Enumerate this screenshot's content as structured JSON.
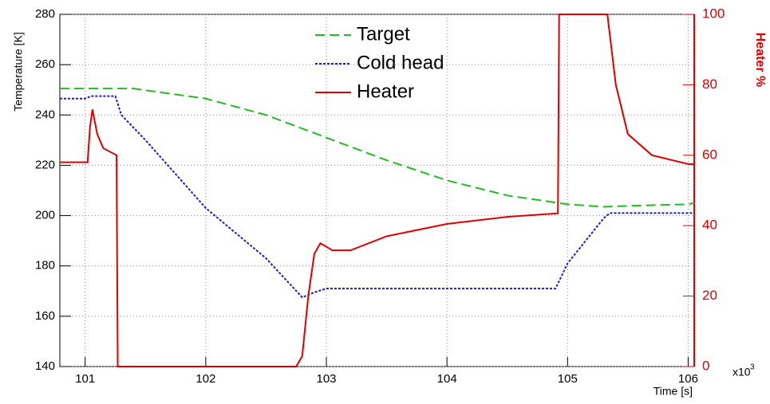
{
  "chart_data": {
    "type": "line",
    "y_label": "Temperature [K]",
    "y2_label": "Heater %",
    "x_label": "Time [s]",
    "x_multiplier": "x10",
    "x_multiplier_exp": "3",
    "xlim": [
      100.79,
      106.05
    ],
    "xticks": [
      101,
      102,
      103,
      104,
      105,
      106
    ],
    "ylim": [
      140,
      280
    ],
    "yticks": [
      140,
      160,
      180,
      200,
      220,
      240,
      260,
      280
    ],
    "y2lim": [
      0,
      100
    ],
    "y2ticks": [
      0,
      20,
      40,
      60,
      80,
      100
    ],
    "y2_color": "#e00000",
    "grid": true,
    "legend": "top",
    "series": [
      {
        "name": "Target",
        "color": "#22bb22",
        "dash": "dashed",
        "x": [
          100.79,
          101.4,
          102,
          102.5,
          103,
          103.5,
          104,
          104.5,
          105,
          105.3,
          105.6,
          106,
          106.05
        ],
        "values": [
          250.5,
          250.5,
          246.5,
          240,
          231,
          222,
          214,
          208,
          204.5,
          203.5,
          204,
          204.5,
          205
        ]
      },
      {
        "name": "Cold head",
        "color": "#1a1acc",
        "dash": "dotted",
        "x": [
          100.79,
          101.0,
          101.05,
          101.25,
          101.3,
          101.5,
          102,
          102.5,
          102.8,
          102.9,
          103,
          104.9,
          105,
          105.3,
          105.35,
          106.05
        ],
        "values": [
          246.5,
          246.5,
          247.5,
          247.5,
          240,
          230,
          203,
          183,
          167.5,
          169.5,
          171,
          171,
          181,
          199,
          201,
          201
        ]
      },
      {
        "name": "Heater",
        "color": "#e00000",
        "dash": "solid",
        "axis": "y2",
        "x": [
          100.79,
          101.02,
          101.04,
          101.06,
          101.1,
          101.15,
          101.26,
          101.27,
          102.75,
          102.8,
          102.85,
          102.9,
          102.95,
          103.05,
          103.2,
          103.5,
          104,
          104.5,
          104.92,
          104.93,
          105.33,
          105.4,
          105.5,
          105.7,
          106,
          106.05
        ],
        "values": [
          58,
          58,
          68,
          73,
          66,
          62,
          60,
          0,
          0,
          3,
          20,
          32,
          35,
          33,
          33,
          37,
          40.5,
          42.5,
          43.5,
          100,
          100,
          80,
          66,
          60,
          57.5,
          57.5
        ]
      }
    ]
  }
}
